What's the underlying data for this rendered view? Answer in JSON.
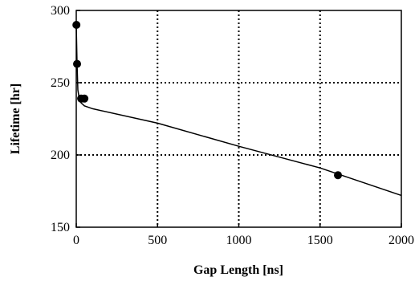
{
  "chart_data": {
    "type": "scatter",
    "title": "",
    "xlabel": "Gap Length [ns]",
    "ylabel": "Lifetime [hr]",
    "xlim": [
      0,
      2000
    ],
    "ylim": [
      150,
      300
    ],
    "x_ticks": [
      0,
      500,
      1000,
      1500,
      2000
    ],
    "y_ticks": [
      150,
      200,
      250,
      300
    ],
    "x_tick_labels": [
      "0",
      "500",
      "1000",
      "1500",
      "2000"
    ],
    "y_tick_labels": [
      "150",
      "200",
      "250",
      "300"
    ],
    "grid": true,
    "series": [
      {
        "type": "scatter",
        "x": [
          1,
          5,
          30,
          50,
          1610
        ],
        "y": [
          290,
          263,
          239,
          239,
          186
        ]
      },
      {
        "type": "line",
        "x": [
          0,
          5,
          10,
          20,
          30,
          50,
          100,
          500,
          1000,
          1500,
          2000
        ],
        "y": [
          290,
          263,
          245,
          238,
          236,
          234,
          232,
          222,
          206,
          191,
          172
        ]
      }
    ]
  }
}
